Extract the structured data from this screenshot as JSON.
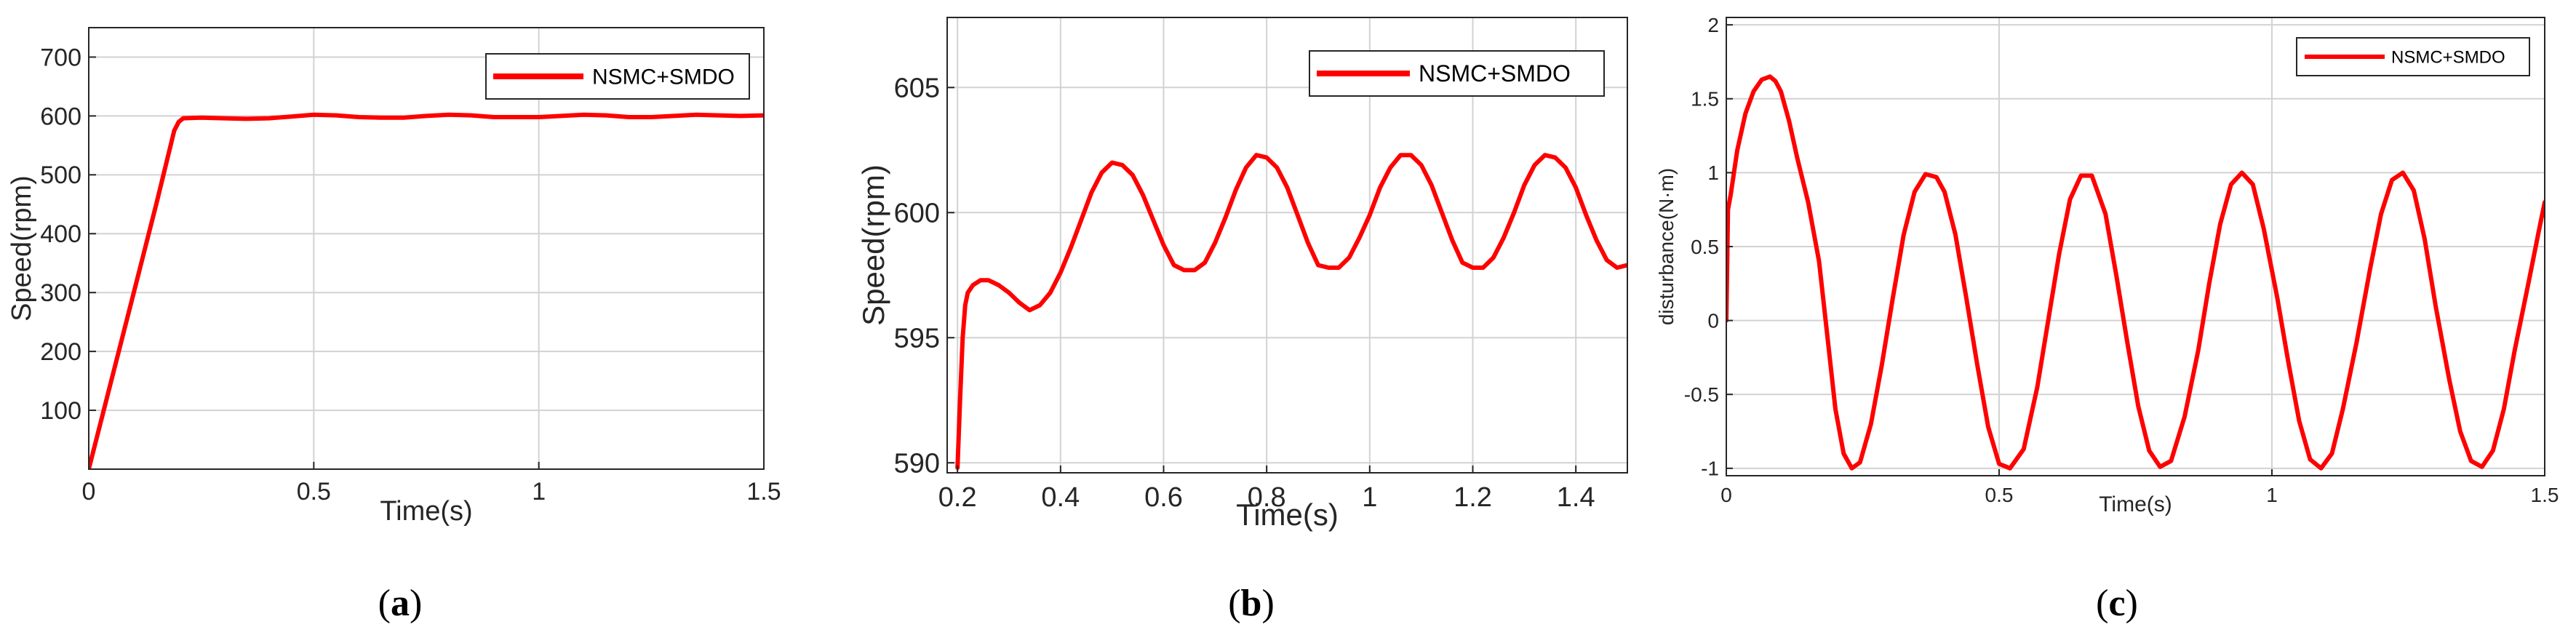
{
  "chart_data": [
    {
      "type": "line",
      "id": "a",
      "caption": {
        "open": "(",
        "letter": "a",
        "close": ")"
      },
      "xlabel": "Time(s)",
      "ylabel": "Speed(rpm)",
      "xlim": [
        0,
        1.5
      ],
      "ylim": [
        0,
        750
      ],
      "xticks": [
        0,
        0.5,
        1,
        1.5
      ],
      "xtick_labels": [
        "0",
        "0.5",
        "1",
        "1.5"
      ],
      "yticks": [
        100,
        200,
        300,
        400,
        500,
        600,
        700
      ],
      "ytick_labels": [
        "100",
        "200",
        "300",
        "400",
        "500",
        "600",
        "700"
      ],
      "grid": true,
      "legend_position": "top-right",
      "series": [
        {
          "name": "NSMC+SMDO",
          "color": "#ff0000",
          "x": [
            0,
            0.05,
            0.1,
            0.15,
            0.19,
            0.2,
            0.21,
            0.25,
            0.3,
            0.35,
            0.4,
            0.45,
            0.5,
            0.55,
            0.6,
            0.65,
            0.7,
            0.75,
            0.8,
            0.85,
            0.9,
            0.95,
            1.0,
            1.05,
            1.1,
            1.15,
            1.2,
            1.25,
            1.3,
            1.35,
            1.4,
            1.45,
            1.5
          ],
          "y": [
            0,
            150,
            300,
            450,
            575,
            590,
            596,
            597,
            596,
            595,
            596,
            599,
            602,
            601,
            598,
            597,
            597,
            600,
            602,
            601,
            598,
            598,
            598,
            600,
            602,
            601,
            598,
            598,
            600,
            602,
            601,
            600,
            601
          ]
        }
      ]
    },
    {
      "type": "line",
      "id": "b",
      "caption": {
        "open": "(",
        "letter": "b",
        "close": ")"
      },
      "xlabel": "Time(s)",
      "ylabel": "Speed(rpm)",
      "xlim": [
        0.18,
        1.5
      ],
      "ylim": [
        589.6,
        607.8
      ],
      "xticks": [
        0.2,
        0.4,
        0.6,
        0.8,
        1.0,
        1.2,
        1.4
      ],
      "xtick_labels": [
        "0.2",
        "0.4",
        "0.6",
        "0.8",
        "1",
        "1.2",
        "1.4"
      ],
      "yticks": [
        590,
        595,
        600,
        605
      ],
      "ytick_labels": [
        "590",
        "595",
        "600",
        "605"
      ],
      "grid": true,
      "legend_position": "top-right",
      "series": [
        {
          "name": "NSMC+SMDO",
          "color": "#ff0000",
          "x": [
            0.2,
            0.205,
            0.21,
            0.215,
            0.22,
            0.23,
            0.245,
            0.26,
            0.28,
            0.3,
            0.32,
            0.34,
            0.36,
            0.38,
            0.4,
            0.42,
            0.44,
            0.46,
            0.48,
            0.5,
            0.52,
            0.54,
            0.56,
            0.58,
            0.6,
            0.62,
            0.64,
            0.66,
            0.68,
            0.7,
            0.72,
            0.74,
            0.76,
            0.78,
            0.8,
            0.82,
            0.84,
            0.86,
            0.88,
            0.9,
            0.92,
            0.94,
            0.96,
            0.98,
            1.0,
            1.02,
            1.04,
            1.06,
            1.08,
            1.1,
            1.12,
            1.14,
            1.16,
            1.18,
            1.2,
            1.22,
            1.24,
            1.26,
            1.28,
            1.3,
            1.32,
            1.34,
            1.36,
            1.38,
            1.4,
            1.42,
            1.44,
            1.46,
            1.48,
            1.5
          ],
          "y": [
            589.8,
            592.5,
            595.0,
            596.3,
            596.8,
            597.1,
            597.3,
            597.3,
            597.1,
            596.8,
            596.4,
            596.1,
            596.3,
            596.8,
            597.6,
            598.6,
            599.7,
            600.8,
            601.6,
            602.0,
            601.9,
            601.5,
            600.7,
            599.7,
            598.7,
            597.9,
            597.7,
            597.7,
            598.0,
            598.8,
            599.8,
            600.9,
            601.8,
            602.3,
            602.2,
            601.8,
            601.0,
            599.9,
            598.8,
            597.9,
            597.8,
            597.8,
            598.2,
            599.0,
            599.9,
            601.0,
            601.8,
            602.3,
            602.3,
            601.9,
            601.1,
            600.0,
            598.9,
            598.0,
            597.8,
            597.8,
            598.2,
            599.0,
            600.0,
            601.1,
            601.9,
            602.3,
            602.2,
            601.8,
            601.0,
            599.9,
            598.9,
            598.1,
            597.8,
            597.9
          ]
        }
      ]
    },
    {
      "type": "line",
      "id": "c",
      "caption": {
        "open": "(",
        "letter": "c",
        "close": ")"
      },
      "xlabel": "Time(s)",
      "ylabel": "disturbance(N·m)",
      "xlim": [
        0,
        1.5
      ],
      "ylim": [
        -1.05,
        2.05
      ],
      "xticks": [
        0,
        0.5,
        1,
        1.5
      ],
      "xtick_labels": [
        "0",
        "0.5",
        "1",
        "1.5"
      ],
      "yticks": [
        -1,
        -0.5,
        0,
        0.5,
        1,
        1.5,
        2
      ],
      "ytick_labels": [
        "-1",
        "-0.5",
        "0",
        "0.5",
        "1",
        "1.5",
        "2"
      ],
      "grid": true,
      "legend_position": "top-right",
      "series": [
        {
          "name": "NSMC+SMDO",
          "color": "#ff0000",
          "x": [
            0.0,
            0.003,
            0.008,
            0.02,
            0.035,
            0.05,
            0.065,
            0.08,
            0.09,
            0.1,
            0.115,
            0.13,
            0.15,
            0.17,
            0.185,
            0.2,
            0.215,
            0.23,
            0.245,
            0.265,
            0.285,
            0.305,
            0.325,
            0.345,
            0.365,
            0.385,
            0.4,
            0.42,
            0.44,
            0.46,
            0.48,
            0.5,
            0.52,
            0.545,
            0.57,
            0.59,
            0.61,
            0.63,
            0.65,
            0.67,
            0.695,
            0.715,
            0.735,
            0.755,
            0.775,
            0.795,
            0.815,
            0.84,
            0.865,
            0.885,
            0.905,
            0.925,
            0.945,
            0.965,
            0.985,
            1.01,
            1.03,
            1.05,
            1.07,
            1.09,
            1.11,
            1.13,
            1.155,
            1.18,
            1.2,
            1.22,
            1.24,
            1.26,
            1.28,
            1.3,
            1.325,
            1.345,
            1.365,
            1.385,
            1.405,
            1.425,
            1.445,
            1.47,
            1.49,
            1.5
          ],
          "y": [
            0.0,
            0.75,
            0.85,
            1.15,
            1.4,
            1.55,
            1.63,
            1.65,
            1.62,
            1.55,
            1.35,
            1.1,
            0.8,
            0.4,
            -0.1,
            -0.6,
            -0.9,
            -1.0,
            -0.96,
            -0.7,
            -0.3,
            0.15,
            0.58,
            0.87,
            0.99,
            0.97,
            0.87,
            0.58,
            0.15,
            -0.3,
            -0.72,
            -0.97,
            -1.0,
            -0.87,
            -0.45,
            0.0,
            0.45,
            0.82,
            0.98,
            0.98,
            0.72,
            0.3,
            -0.15,
            -0.58,
            -0.88,
            -0.99,
            -0.95,
            -0.65,
            -0.2,
            0.25,
            0.65,
            0.92,
            1.0,
            0.92,
            0.62,
            0.15,
            -0.28,
            -0.68,
            -0.94,
            -1.0,
            -0.9,
            -0.6,
            -0.15,
            0.35,
            0.72,
            0.95,
            1.0,
            0.88,
            0.55,
            0.1,
            -0.4,
            -0.75,
            -0.95,
            -0.99,
            -0.88,
            -0.6,
            -0.2,
            0.25,
            0.62,
            0.8
          ]
        }
      ]
    }
  ]
}
